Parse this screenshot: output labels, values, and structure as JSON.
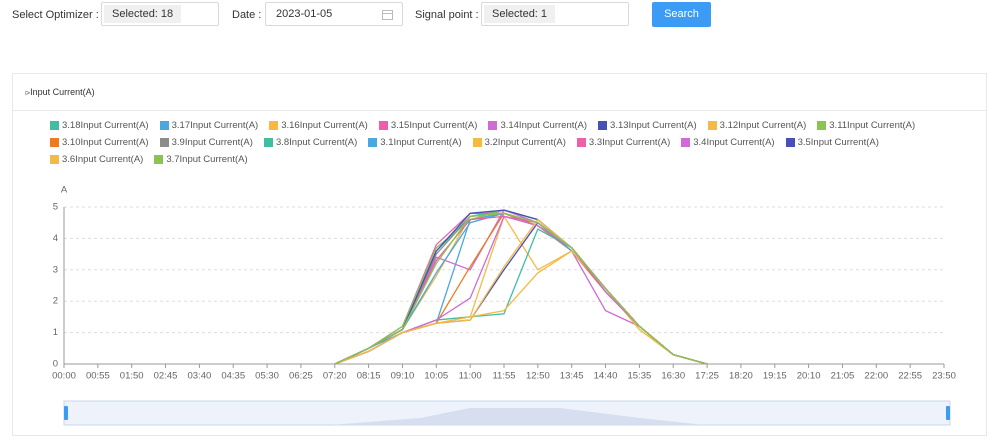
{
  "filters": {
    "optimizer_label": "Select Optimizer :",
    "optimizer_value": "Selected: 18",
    "date_label": "Date :",
    "date_value": "2023-01-05",
    "signal_label": "Signal point :",
    "signal_value": "Selected: 1",
    "search": "Search"
  },
  "chart_data": {
    "type": "line",
    "title": "Input Current(A)",
    "y_label": "A",
    "categories": [
      "00:00",
      "00:55",
      "01:50",
      "02:45",
      "03:40",
      "04:35",
      "05:30",
      "06:25",
      "07:20",
      "08:15",
      "09:10",
      "10:05",
      "11:00",
      "11:55",
      "12:50",
      "13:45",
      "14:40",
      "15:35",
      "16:30",
      "17:25",
      "18:20",
      "19:15",
      "20:10",
      "21:05",
      "22:00",
      "22:55",
      "23:50"
    ],
    "ylim": [
      0,
      5
    ],
    "yticks": [
      0,
      1,
      2,
      3,
      4,
      5
    ],
    "grid": true,
    "series": [
      {
        "name": "3.18Input Current(A)",
        "color": "#3fbfa0",
        "values": [
          null,
          null,
          null,
          null,
          null,
          null,
          null,
          null,
          0,
          0.5,
          1.1,
          3.6,
          4.7,
          4.9,
          4.6,
          3.7,
          2.4,
          1.2,
          0.3,
          0,
          null,
          null,
          null,
          null,
          null,
          null,
          null
        ]
      },
      {
        "name": "3.17Input Current(A)",
        "color": "#4aa8e0",
        "values": [
          null,
          null,
          null,
          null,
          null,
          null,
          null,
          null,
          0,
          0.5,
          1.0,
          1.3,
          4.6,
          4.8,
          4.5,
          3.7,
          2.3,
          1.2,
          0.3,
          0,
          null,
          null,
          null,
          null,
          null,
          null,
          null
        ]
      },
      {
        "name": "3.16Input Current(A)",
        "color": "#f5b944",
        "values": [
          null,
          null,
          null,
          null,
          null,
          null,
          null,
          null,
          0,
          0.4,
          1.0,
          1.4,
          1.5,
          4.7,
          3.0,
          3.6,
          2.4,
          1.1,
          0.3,
          0,
          null,
          null,
          null,
          null,
          null,
          null,
          null
        ]
      },
      {
        "name": "3.15Input Current(A)",
        "color": "#ef5fa8",
        "values": [
          null,
          null,
          null,
          null,
          null,
          null,
          null,
          null,
          0,
          0.5,
          1.2,
          3.8,
          4.8,
          4.8,
          4.4,
          3.7,
          2.4,
          1.2,
          0.3,
          0,
          null,
          null,
          null,
          null,
          null,
          null,
          null
        ]
      },
      {
        "name": "3.14Input Current(A)",
        "color": "#d16ad6",
        "values": [
          null,
          null,
          null,
          null,
          null,
          null,
          null,
          null,
          0,
          0.5,
          1.1,
          3.4,
          3.0,
          4.9,
          4.5,
          3.6,
          1.7,
          1.2,
          0.3,
          0,
          null,
          null,
          null,
          null,
          null,
          null,
          null
        ]
      },
      {
        "name": "3.13Input Current(A)",
        "color": "#4750b8",
        "values": [
          null,
          null,
          null,
          null,
          null,
          null,
          null,
          null,
          0,
          0.4,
          1.0,
          1.3,
          1.4,
          3.0,
          4.5,
          3.7,
          2.4,
          1.2,
          0.3,
          0,
          null,
          null,
          null,
          null,
          null,
          null,
          null
        ]
      },
      {
        "name": "3.12Input Current(A)",
        "color": "#f5b944",
        "values": [
          null,
          null,
          null,
          null,
          null,
          null,
          null,
          null,
          0,
          0.5,
          1.1,
          2.8,
          4.7,
          4.8,
          4.5,
          3.7,
          2.4,
          1.2,
          0.3,
          0,
          null,
          null,
          null,
          null,
          null,
          null,
          null
        ]
      },
      {
        "name": "3.11Input Current(A)",
        "color": "#8ac452",
        "values": [
          null,
          null,
          null,
          null,
          null,
          null,
          null,
          null,
          0,
          0.5,
          1.2,
          3.7,
          4.6,
          4.9,
          4.6,
          3.7,
          2.4,
          1.2,
          0.3,
          0,
          null,
          null,
          null,
          null,
          null,
          null,
          null
        ]
      },
      {
        "name": "3.10Input Current(A)",
        "color": "#ef7a1f",
        "values": [
          null,
          null,
          null,
          null,
          null,
          null,
          null,
          null,
          0,
          0.4,
          1.0,
          1.3,
          3.1,
          4.8,
          4.4,
          3.6,
          2.3,
          1.2,
          0.3,
          0,
          null,
          null,
          null,
          null,
          null,
          null,
          null
        ]
      },
      {
        "name": "3.9Input Current(A)",
        "color": "#8c8c8c",
        "values": [
          null,
          null,
          null,
          null,
          null,
          null,
          null,
          null,
          0,
          0.5,
          1.1,
          3.5,
          4.7,
          4.8,
          4.5,
          3.7,
          2.4,
          1.2,
          0.3,
          0,
          null,
          null,
          null,
          null,
          null,
          null,
          null
        ]
      },
      {
        "name": "3.8Input Current(A)",
        "color": "#3fbfa0",
        "values": [
          null,
          null,
          null,
          null,
          null,
          null,
          null,
          null,
          0,
          0.4,
          1.0,
          1.4,
          1.5,
          1.6,
          4.3,
          3.7,
          2.4,
          1.2,
          0.3,
          0,
          null,
          null,
          null,
          null,
          null,
          null,
          null
        ]
      },
      {
        "name": "3.1Input Current(A)",
        "color": "#4aa8e0",
        "values": [
          null,
          null,
          null,
          null,
          null,
          null,
          null,
          null,
          0,
          0.5,
          1.1,
          2.9,
          4.5,
          4.8,
          4.5,
          3.6,
          2.4,
          1.2,
          0.3,
          0,
          null,
          null,
          null,
          null,
          null,
          null,
          null
        ]
      },
      {
        "name": "3.2Input Current(A)",
        "color": "#f5b944",
        "values": [
          null,
          null,
          null,
          null,
          null,
          null,
          null,
          null,
          0,
          0.4,
          1.0,
          1.3,
          1.5,
          1.7,
          2.9,
          3.6,
          2.4,
          1.1,
          0.3,
          0,
          null,
          null,
          null,
          null,
          null,
          null,
          null
        ]
      },
      {
        "name": "3.3Input Current(A)",
        "color": "#ef5fa8",
        "values": [
          null,
          null,
          null,
          null,
          null,
          null,
          null,
          null,
          0,
          0.5,
          1.1,
          3.3,
          4.6,
          4.7,
          4.5,
          3.7,
          2.4,
          1.2,
          0.3,
          0,
          null,
          null,
          null,
          null,
          null,
          null,
          null
        ]
      },
      {
        "name": "3.4Input Current(A)",
        "color": "#d16ad6",
        "values": [
          null,
          null,
          null,
          null,
          null,
          null,
          null,
          null,
          0,
          0.4,
          1.0,
          1.4,
          2.1,
          4.7,
          4.4,
          3.7,
          2.3,
          1.2,
          0.3,
          0,
          null,
          null,
          null,
          null,
          null,
          null,
          null
        ]
      },
      {
        "name": "3.5Input Current(A)",
        "color": "#4750b8",
        "values": [
          null,
          null,
          null,
          null,
          null,
          null,
          null,
          null,
          0,
          0.5,
          1.1,
          3.6,
          4.8,
          4.9,
          4.6,
          3.7,
          2.4,
          1.2,
          0.3,
          0,
          null,
          null,
          null,
          null,
          null,
          null,
          null
        ]
      },
      {
        "name": "3.6Input Current(A)",
        "color": "#f5b944",
        "values": [
          null,
          null,
          null,
          null,
          null,
          null,
          null,
          null,
          0,
          0.4,
          1.0,
          1.3,
          1.4,
          3.1,
          4.6,
          3.7,
          2.4,
          1.2,
          0.3,
          0,
          null,
          null,
          null,
          null,
          null,
          null,
          null
        ]
      },
      {
        "name": "3.7Input Current(A)",
        "color": "#8ac452",
        "values": [
          null,
          null,
          null,
          null,
          null,
          null,
          null,
          null,
          0,
          0.5,
          1.1,
          3.2,
          4.7,
          4.8,
          4.5,
          3.7,
          2.4,
          1.2,
          0.3,
          0,
          null,
          null,
          null,
          null,
          null,
          null,
          null
        ]
      }
    ]
  }
}
